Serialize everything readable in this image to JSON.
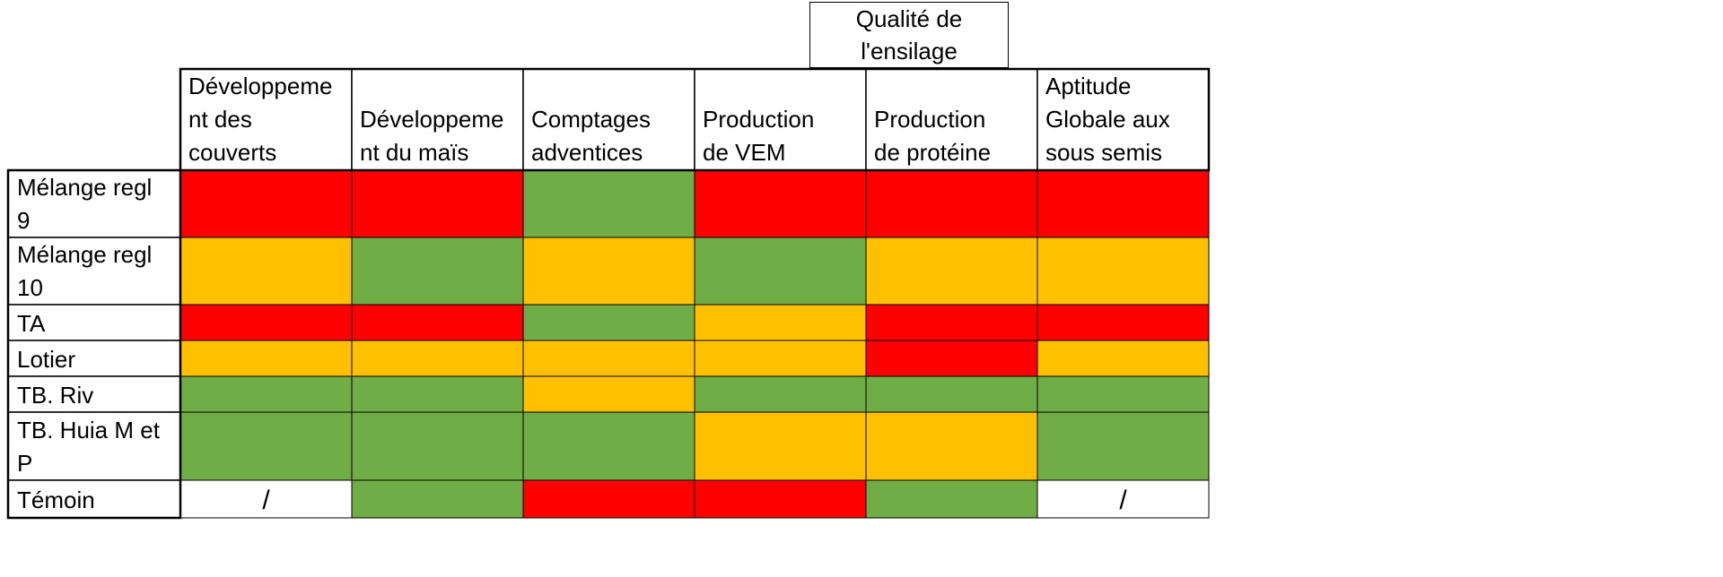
{
  "chart_data": {
    "type": "table",
    "title": "",
    "top_header": [
      "Qualité de",
      "l'ensilage"
    ],
    "columns": [
      [
        "Développeme",
        "nt des",
        "couverts"
      ],
      [
        "Développeme",
        "nt du maïs"
      ],
      [
        "Comptages",
        "adventices"
      ],
      [
        "Production",
        "de VEM"
      ],
      [
        "Production",
        "de protéine"
      ],
      [
        "Aptitude",
        "Globale aux",
        "sous semis"
      ]
    ],
    "rows": [
      {
        "label": [
          "Mélange regl",
          "9"
        ],
        "cells": [
          "red",
          "red",
          "green",
          "red",
          "red",
          "red"
        ]
      },
      {
        "label": [
          "Mélange regl",
          "10"
        ],
        "cells": [
          "orange",
          "green",
          "orange",
          "green",
          "orange",
          "orange"
        ]
      },
      {
        "label": [
          "TA"
        ],
        "cells": [
          "red",
          "red",
          "green",
          "orange",
          "red",
          "red"
        ]
      },
      {
        "label": [
          "Lotier"
        ],
        "cells": [
          "orange",
          "orange",
          "orange",
          "orange",
          "red",
          "orange"
        ]
      },
      {
        "label": [
          "TB. Riv"
        ],
        "cells": [
          "green",
          "green",
          "orange",
          "green",
          "green",
          "green"
        ]
      },
      {
        "label": [
          "TB. Huia M et",
          "P"
        ],
        "cells": [
          "green",
          "green",
          "green",
          "orange",
          "orange",
          "green"
        ]
      },
      {
        "label": [
          "Témoin"
        ],
        "cells": [
          "/",
          "green",
          "red",
          "red",
          "green",
          "/"
        ]
      }
    ],
    "colors": {
      "red": "#ff0000",
      "orange": "#ffc000",
      "green": "#70ad47",
      "blank": "#ffffff"
    }
  }
}
